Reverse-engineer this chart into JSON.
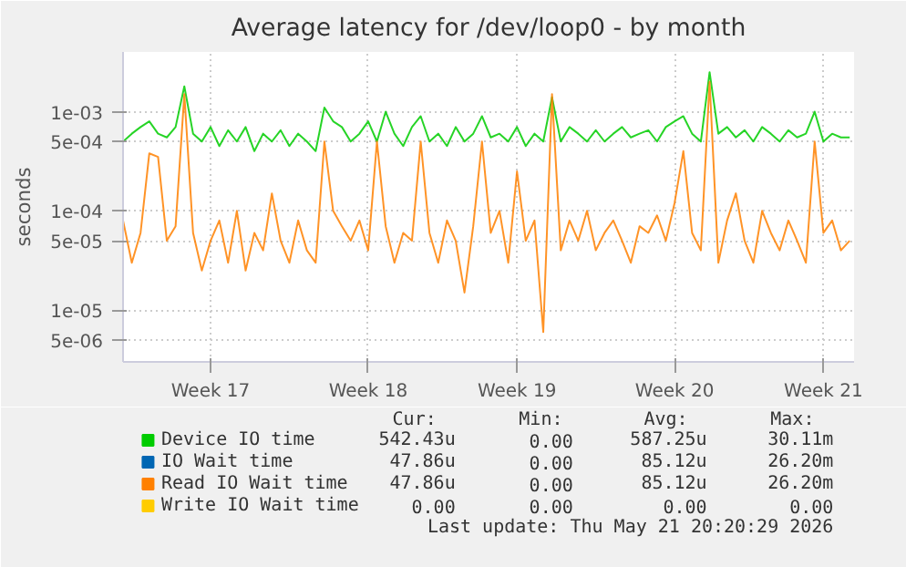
{
  "chart_data": {
    "type": "line",
    "title": "Average latency for /dev/loop0 - by month",
    "ylabel": "seconds",
    "log": "y",
    "grid": true,
    "legend": "bottom",
    "categories": [
      null,
      null,
      null,
      null,
      null,
      null,
      null,
      null,
      null,
      null,
      "Week 17",
      null,
      null,
      null,
      null,
      null,
      null,
      null,
      null,
      null,
      null,
      null,
      null,
      null,
      null,
      null,
      null,
      null,
      "Week 18",
      null,
      null,
      null,
      null,
      null,
      null,
      null,
      null,
      null,
      null,
      null,
      null,
      null,
      null,
      null,
      null,
      "Week 19",
      null,
      null,
      null,
      null,
      null,
      null,
      null,
      null,
      null,
      null,
      null,
      null,
      null,
      null,
      null,
      null,
      null,
      "Week 20",
      null,
      null,
      null,
      null,
      null,
      null,
      null,
      null,
      null,
      null,
      null,
      null,
      null,
      null,
      null,
      null,
      "Week 21",
      null,
      null,
      null
    ],
    "ylim": [
      3e-06,
      0.004
    ],
    "yticks": [
      {
        "value": 5e-06,
        "label": "5e-06"
      },
      {
        "value": 1e-05,
        "label": "1e-05"
      },
      {
        "value": 5e-05,
        "label": "5e-05"
      },
      {
        "value": 0.0001,
        "label": "1e-04"
      },
      {
        "value": 0.0005,
        "label": "5e-04"
      },
      {
        "value": 0.001,
        "label": "1e-03"
      }
    ],
    "series": [
      {
        "name": "Device IO time",
        "color": "#00cc00",
        "values": [
          0.0005,
          0.0006,
          0.0007,
          0.0008,
          0.0006,
          0.00055,
          0.0007,
          0.0018,
          0.0006,
          0.0005,
          0.0007,
          0.00045,
          0.00065,
          0.0005,
          0.0007,
          0.0004,
          0.0006,
          0.0005,
          0.00065,
          0.00045,
          0.0006,
          0.0005,
          0.0004,
          0.0011,
          0.0008,
          0.0007,
          0.0005,
          0.0006,
          0.0008,
          0.0005,
          0.001,
          0.0006,
          0.00045,
          0.0007,
          0.0009,
          0.0005,
          0.0006,
          0.00045,
          0.0007,
          0.0005,
          0.0006,
          0.0009,
          0.00055,
          0.0006,
          0.0005,
          0.0007,
          0.00045,
          0.0006,
          0.0005,
          0.0014,
          0.0005,
          0.0007,
          0.0006,
          0.0005,
          0.00065,
          0.0005,
          0.0006,
          0.0007,
          0.00055,
          0.0006,
          0.00065,
          0.0005,
          0.0007,
          0.0008,
          0.0009,
          0.0006,
          0.0005,
          0.0025,
          0.0006,
          0.0007,
          0.00055,
          0.00065,
          0.0005,
          0.0007,
          0.0006,
          0.0005,
          0.00065,
          0.00055,
          0.0006,
          0.001,
          0.0005,
          0.0006,
          0.00055,
          0.00055
        ]
      },
      {
        "name": "IO Wait time",
        "color": "#0066b3",
        "values": [
          null,
          null,
          null,
          null,
          null,
          null,
          null,
          null,
          null,
          null,
          null,
          null,
          null,
          null,
          null,
          null,
          null,
          null,
          null,
          null,
          null,
          null,
          null,
          null,
          null,
          null,
          null,
          null,
          null,
          null,
          null,
          null,
          null,
          null,
          null,
          null,
          null,
          null,
          null,
          null,
          null,
          null,
          null,
          null,
          null,
          null,
          null,
          null,
          null,
          null,
          null,
          null,
          null,
          null,
          null,
          null,
          null,
          null,
          null,
          null,
          null,
          null,
          null,
          null,
          null,
          null,
          null,
          null,
          null,
          null,
          null,
          null,
          null,
          null,
          null,
          null,
          null,
          null,
          null,
          null,
          null,
          null,
          null,
          null
        ]
      },
      {
        "name": "Read IO Wait time",
        "color": "#ff8000",
        "values": [
          8e-05,
          3e-05,
          6e-05,
          0.00038,
          0.00035,
          5e-05,
          7e-05,
          0.0015,
          6e-05,
          2.5e-05,
          5e-05,
          8e-05,
          3e-05,
          0.0001,
          2.5e-05,
          6e-05,
          4e-05,
          0.00015,
          5e-05,
          3e-05,
          8e-05,
          4e-05,
          3e-05,
          0.0005,
          0.0001,
          7e-05,
          5e-05,
          8e-05,
          4e-05,
          0.0005,
          7e-05,
          3e-05,
          6e-05,
          5e-05,
          0.0005,
          6e-05,
          3e-05,
          8e-05,
          5e-05,
          1.5e-05,
          7e-05,
          0.0005,
          6e-05,
          0.0001,
          3e-05,
          0.00025,
          5e-05,
          8e-05,
          6e-06,
          0.0015,
          4e-05,
          8e-05,
          5e-05,
          0.0001,
          4e-05,
          6e-05,
          8e-05,
          5e-05,
          3e-05,
          7e-05,
          6e-05,
          9e-05,
          5e-05,
          0.00012,
          0.0004,
          6e-05,
          4e-05,
          0.002,
          3e-05,
          8e-05,
          0.00015,
          5e-05,
          3e-05,
          0.0001,
          6e-05,
          4e-05,
          8e-05,
          5e-05,
          3e-05,
          0.0005,
          6e-05,
          8e-05,
          4e-05,
          5e-05
        ]
      },
      {
        "name": "Write IO Wait time",
        "color": "#ffcc00",
        "values": [
          null,
          null,
          null,
          null,
          null,
          null,
          null,
          null,
          null,
          null,
          null,
          null,
          null,
          null,
          null,
          null,
          null,
          null,
          null,
          null,
          null,
          null,
          null,
          null,
          null,
          null,
          null,
          null,
          null,
          null,
          null,
          null,
          null,
          null,
          null,
          null,
          null,
          null,
          null,
          null,
          null,
          null,
          null,
          null,
          null,
          null,
          null,
          null,
          null,
          null,
          null,
          null,
          null,
          null,
          null,
          null,
          null,
          null,
          null,
          null,
          null,
          null,
          null,
          null,
          null,
          null,
          null,
          null,
          null,
          null,
          null,
          null,
          null,
          null,
          null,
          null,
          null,
          null,
          null,
          null,
          null,
          null,
          null,
          null
        ]
      }
    ],
    "annotations": [
      "Cur:",
      "Min:",
      "Avg:",
      "Max:",
      "542.43u",
      "0.00",
      "587.25u",
      "30.11m",
      "47.86u",
      "0.00",
      "85.12u",
      "26.20m",
      "47.86u",
      "0.00",
      "85.12u",
      "26.20m",
      "0.00",
      "0.00",
      "0.00",
      "0.00",
      "Last update: Thu May 21 20:20:29 2026"
    ]
  }
}
